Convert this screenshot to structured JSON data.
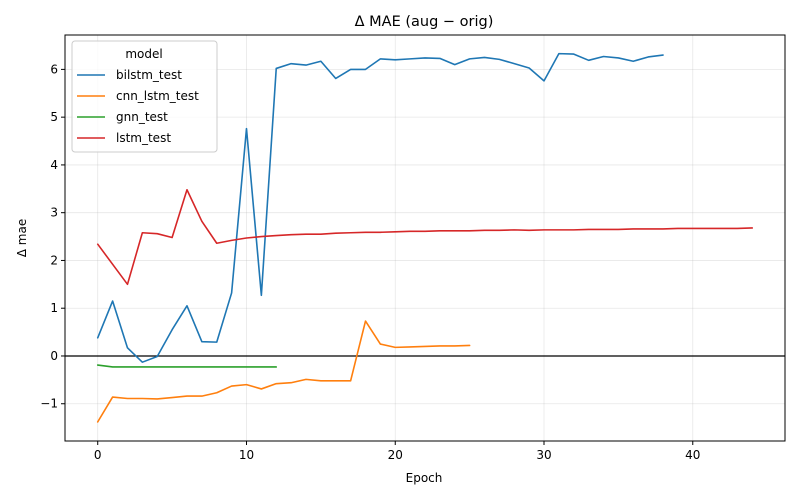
{
  "chart_data": {
    "type": "line",
    "title": "Δ MAE (aug − orig)",
    "xlabel": "Epoch",
    "ylabel": "Δ mae",
    "xlim": [
      -2.2,
      46.2
    ],
    "ylim": [
      -1.78,
      6.72
    ],
    "xticks": [
      0,
      10,
      20,
      30,
      40
    ],
    "yticks": [
      -1,
      0,
      1,
      2,
      3,
      4,
      5,
      6
    ],
    "ytick_labels": [
      "−1",
      "0",
      "1",
      "2",
      "3",
      "4",
      "5",
      "6"
    ],
    "grid": true,
    "hline": 0,
    "legend": {
      "title": "model",
      "placement": "top-left"
    },
    "series": [
      {
        "name": "bilstm_test",
        "color": "#1f77b4",
        "x": [
          0,
          1,
          2,
          3,
          4,
          5,
          6,
          7,
          8,
          9,
          10,
          11,
          12,
          13,
          14,
          15,
          16,
          17,
          18,
          19,
          20,
          21,
          22,
          23,
          24,
          25,
          26,
          27,
          28,
          29,
          30,
          31,
          32,
          33,
          34,
          35,
          36,
          37,
          38
        ],
        "values": [
          0.38,
          1.15,
          0.17,
          -0.13,
          -0.01,
          0.55,
          1.05,
          0.3,
          0.29,
          1.32,
          4.76,
          1.27,
          6.02,
          6.12,
          6.09,
          6.17,
          5.81,
          6.0,
          6.0,
          6.22,
          6.2,
          6.22,
          6.24,
          6.23,
          6.1,
          6.22,
          6.25,
          6.21,
          6.12,
          6.03,
          5.76,
          6.33,
          6.32,
          6.19,
          6.27,
          6.24,
          6.17,
          6.26,
          6.3
        ]
      },
      {
        "name": "cnn_lstm_test",
        "color": "#ff7f0e",
        "x": [
          0,
          1,
          2,
          3,
          4,
          5,
          6,
          7,
          8,
          9,
          10,
          11,
          12,
          13,
          14,
          15,
          16,
          17,
          18,
          19,
          20,
          21,
          22,
          23,
          24,
          25
        ],
        "values": [
          -1.38,
          -0.86,
          -0.89,
          -0.89,
          -0.9,
          -0.87,
          -0.84,
          -0.84,
          -0.77,
          -0.63,
          -0.6,
          -0.69,
          -0.58,
          -0.56,
          -0.49,
          -0.52,
          -0.52,
          -0.52,
          0.73,
          0.25,
          0.18,
          0.19,
          0.2,
          0.21,
          0.21,
          0.22
        ]
      },
      {
        "name": "gnn_test",
        "color": "#2ca02c",
        "x": [
          0,
          1,
          2,
          3,
          4,
          5,
          6,
          7,
          8,
          9,
          10,
          11,
          12
        ],
        "values": [
          -0.19,
          -0.23,
          -0.23,
          -0.23,
          -0.23,
          -0.23,
          -0.23,
          -0.23,
          -0.23,
          -0.23,
          -0.23,
          -0.23,
          -0.23
        ]
      },
      {
        "name": "lstm_test",
        "color": "#d62728",
        "x": [
          0,
          2,
          3,
          4,
          5,
          6,
          7,
          8,
          9,
          10,
          11,
          12,
          13,
          14,
          15,
          16,
          17,
          18,
          19,
          20,
          21,
          22,
          23,
          24,
          25,
          26,
          27,
          28,
          29,
          30,
          31,
          32,
          33,
          34,
          35,
          36,
          37,
          38,
          39,
          40,
          41,
          42,
          43,
          44
        ],
        "values": [
          2.34,
          1.5,
          2.58,
          2.56,
          2.48,
          3.48,
          2.82,
          2.36,
          2.42,
          2.47,
          2.5,
          2.52,
          2.54,
          2.55,
          2.55,
          2.57,
          2.58,
          2.59,
          2.59,
          2.6,
          2.61,
          2.61,
          2.62,
          2.62,
          2.62,
          2.63,
          2.63,
          2.64,
          2.63,
          2.64,
          2.64,
          2.64,
          2.65,
          2.65,
          2.65,
          2.66,
          2.66,
          2.66,
          2.67,
          2.67,
          2.67,
          2.67,
          2.67,
          2.68
        ]
      }
    ]
  }
}
